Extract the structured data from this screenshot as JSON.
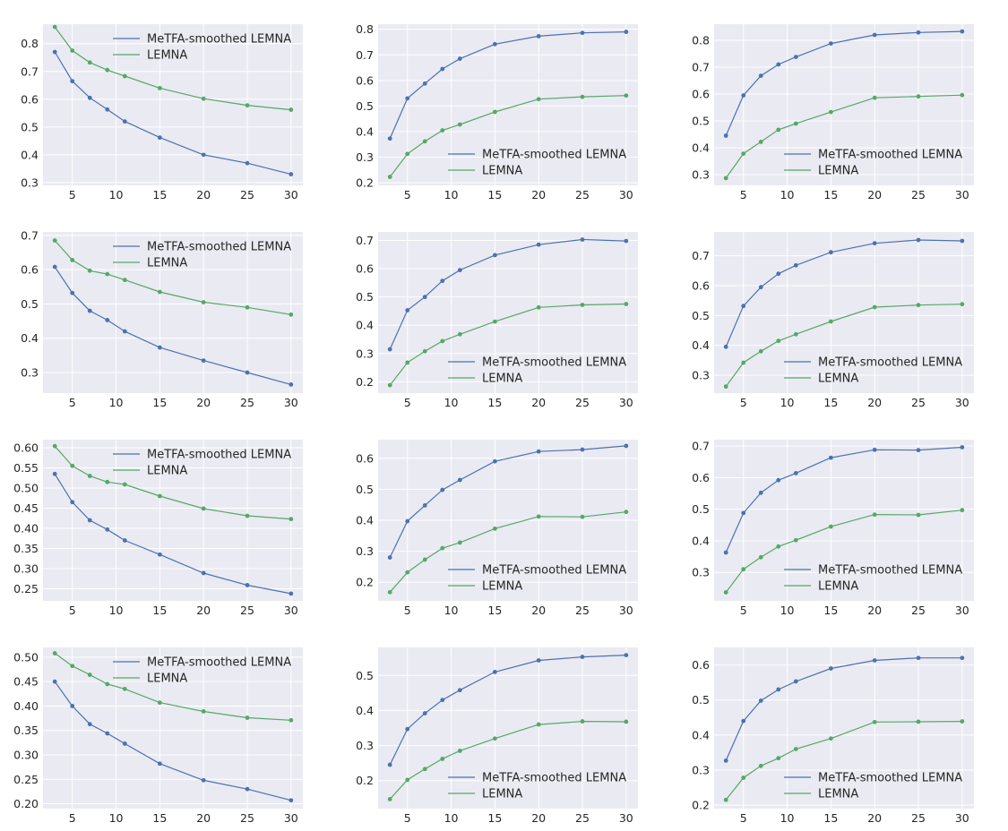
{
  "chart_data": [
    {
      "type": "line",
      "title": "",
      "xlabel": "",
      "ylabel": "",
      "legend": "top-right",
      "x": [
        3,
        5,
        7,
        9,
        11,
        15,
        20,
        25,
        30
      ],
      "xticks": [
        5,
        10,
        15,
        20,
        25,
        30
      ],
      "ylim": [
        0.29,
        0.87
      ],
      "yticks": [
        0.3,
        0.4,
        0.5,
        0.6,
        0.7,
        0.8
      ],
      "ytick_labels": [
        "0.3",
        "0.4",
        "0.5",
        "0.6",
        "0.7",
        "0.8"
      ],
      "series": [
        {
          "name": "MeTFA-smoothed LEMNA",
          "color": "#4c72b0",
          "values": [
            0.77,
            0.665,
            0.605,
            0.563,
            0.52,
            0.462,
            0.4,
            0.37,
            0.33
          ]
        },
        {
          "name": "LEMNA",
          "color": "#55a868",
          "values": [
            0.86,
            0.775,
            0.732,
            0.705,
            0.683,
            0.64,
            0.602,
            0.578,
            0.562
          ]
        }
      ]
    },
    {
      "type": "line",
      "title": "",
      "xlabel": "",
      "ylabel": "",
      "legend": "lower-right",
      "x": [
        3,
        5,
        7,
        9,
        11,
        15,
        20,
        25,
        30
      ],
      "xticks": [
        5,
        10,
        15,
        20,
        25,
        30
      ],
      "ylim": [
        0.19,
        0.82
      ],
      "yticks": [
        0.2,
        0.3,
        0.4,
        0.5,
        0.6,
        0.7,
        0.8
      ],
      "ytick_labels": [
        "0.2",
        "0.3",
        "0.4",
        "0.5",
        "0.6",
        "0.7",
        "0.8"
      ],
      "series": [
        {
          "name": "MeTFA-smoothed LEMNA",
          "color": "#4c72b0",
          "values": [
            0.373,
            0.53,
            0.588,
            0.645,
            0.685,
            0.742,
            0.773,
            0.786,
            0.79
          ]
        },
        {
          "name": "LEMNA",
          "color": "#55a868",
          "values": [
            0.223,
            0.313,
            0.362,
            0.405,
            0.428,
            0.477,
            0.527,
            0.536,
            0.541
          ]
        }
      ]
    },
    {
      "type": "line",
      "title": "",
      "xlabel": "",
      "ylabel": "",
      "legend": "lower-right",
      "x": [
        3,
        5,
        7,
        9,
        11,
        15,
        20,
        25,
        30
      ],
      "xticks": [
        5,
        10,
        15,
        20,
        25,
        30
      ],
      "ylim": [
        0.26,
        0.86
      ],
      "yticks": [
        0.3,
        0.4,
        0.5,
        0.6,
        0.7,
        0.8
      ],
      "ytick_labels": [
        "0.3",
        "0.4",
        "0.5",
        "0.6",
        "0.7",
        "0.8"
      ],
      "series": [
        {
          "name": "MeTFA-smoothed LEMNA",
          "color": "#4c72b0",
          "values": [
            0.445,
            0.595,
            0.668,
            0.71,
            0.738,
            0.788,
            0.82,
            0.829,
            0.833
          ]
        },
        {
          "name": "LEMNA",
          "color": "#55a868",
          "values": [
            0.287,
            0.378,
            0.422,
            0.467,
            0.49,
            0.533,
            0.586,
            0.591,
            0.596
          ]
        }
      ]
    },
    {
      "type": "line",
      "title": "",
      "xlabel": "",
      "ylabel": "",
      "legend": "top-right",
      "x": [
        3,
        5,
        7,
        9,
        11,
        15,
        20,
        25,
        30
      ],
      "xticks": [
        5,
        10,
        15,
        20,
        25,
        30
      ],
      "ylim": [
        0.24,
        0.71
      ],
      "yticks": [
        0.3,
        0.4,
        0.5,
        0.6,
        0.7
      ],
      "ytick_labels": [
        "0.3",
        "0.4",
        "0.5",
        "0.6",
        "0.7"
      ],
      "series": [
        {
          "name": "MeTFA-smoothed LEMNA",
          "color": "#4c72b0",
          "values": [
            0.608,
            0.532,
            0.48,
            0.453,
            0.42,
            0.373,
            0.335,
            0.3,
            0.265
          ]
        },
        {
          "name": "LEMNA",
          "color": "#55a868",
          "values": [
            0.685,
            0.628,
            0.597,
            0.587,
            0.57,
            0.535,
            0.505,
            0.49,
            0.469
          ]
        }
      ]
    },
    {
      "type": "line",
      "title": "",
      "xlabel": "",
      "ylabel": "",
      "legend": "lower-right",
      "x": [
        3,
        5,
        7,
        9,
        11,
        15,
        20,
        25,
        30
      ],
      "xticks": [
        5,
        10,
        15,
        20,
        25,
        30
      ],
      "ylim": [
        0.16,
        0.73
      ],
      "yticks": [
        0.2,
        0.3,
        0.4,
        0.5,
        0.6,
        0.7
      ],
      "ytick_labels": [
        "0.2",
        "0.3",
        "0.4",
        "0.5",
        "0.6",
        "0.7"
      ],
      "series": [
        {
          "name": "MeTFA-smoothed LEMNA",
          "color": "#4c72b0",
          "values": [
            0.315,
            0.453,
            0.5,
            0.557,
            0.595,
            0.648,
            0.685,
            0.703,
            0.698
          ]
        },
        {
          "name": "LEMNA",
          "color": "#55a868",
          "values": [
            0.188,
            0.268,
            0.308,
            0.344,
            0.368,
            0.413,
            0.463,
            0.472,
            0.475
          ]
        }
      ]
    },
    {
      "type": "line",
      "title": "",
      "xlabel": "",
      "ylabel": "",
      "legend": "lower-right",
      "x": [
        3,
        5,
        7,
        9,
        11,
        15,
        20,
        25,
        30
      ],
      "xticks": [
        5,
        10,
        15,
        20,
        25,
        30
      ],
      "ylim": [
        0.24,
        0.78
      ],
      "yticks": [
        0.3,
        0.4,
        0.5,
        0.6,
        0.7
      ],
      "ytick_labels": [
        "0.3",
        "0.4",
        "0.5",
        "0.6",
        "0.7"
      ],
      "series": [
        {
          "name": "MeTFA-smoothed LEMNA",
          "color": "#4c72b0",
          "values": [
            0.395,
            0.532,
            0.595,
            0.64,
            0.668,
            0.712,
            0.742,
            0.753,
            0.75
          ]
        },
        {
          "name": "LEMNA",
          "color": "#55a868",
          "values": [
            0.262,
            0.342,
            0.38,
            0.415,
            0.437,
            0.48,
            0.528,
            0.535,
            0.538
          ]
        }
      ]
    },
    {
      "type": "line",
      "title": "",
      "xlabel": "",
      "ylabel": "",
      "legend": "top-right",
      "x": [
        3,
        5,
        7,
        9,
        11,
        15,
        20,
        25,
        30
      ],
      "xticks": [
        5,
        10,
        15,
        20,
        25,
        30
      ],
      "ylim": [
        0.22,
        0.62
      ],
      "yticks": [
        0.25,
        0.3,
        0.35,
        0.4,
        0.45,
        0.5,
        0.55,
        0.6
      ],
      "ytick_labels": [
        "0.25",
        "0.30",
        "0.35",
        "0.40",
        "0.45",
        "0.50",
        "0.55",
        "0.60"
      ],
      "series": [
        {
          "name": "MeTFA-smoothed LEMNA",
          "color": "#4c72b0",
          "values": [
            0.535,
            0.465,
            0.42,
            0.397,
            0.37,
            0.335,
            0.289,
            0.259,
            0.238
          ]
        },
        {
          "name": "LEMNA",
          "color": "#55a868",
          "values": [
            0.604,
            0.555,
            0.53,
            0.515,
            0.509,
            0.48,
            0.449,
            0.431,
            0.423
          ]
        }
      ]
    },
    {
      "type": "line",
      "title": "",
      "xlabel": "",
      "ylabel": "",
      "legend": "lower-right",
      "x": [
        3,
        5,
        7,
        9,
        11,
        15,
        20,
        25,
        30
      ],
      "xticks": [
        5,
        10,
        15,
        20,
        25,
        30
      ],
      "ylim": [
        0.14,
        0.66
      ],
      "yticks": [
        0.2,
        0.3,
        0.4,
        0.5,
        0.6
      ],
      "ytick_labels": [
        "0.2",
        "0.3",
        "0.4",
        "0.5",
        "0.6"
      ],
      "series": [
        {
          "name": "MeTFA-smoothed LEMNA",
          "color": "#4c72b0",
          "values": [
            0.28,
            0.397,
            0.448,
            0.498,
            0.53,
            0.59,
            0.622,
            0.628,
            0.64
          ]
        },
        {
          "name": "LEMNA",
          "color": "#55a868",
          "values": [
            0.168,
            0.232,
            0.273,
            0.31,
            0.328,
            0.373,
            0.412,
            0.411,
            0.427
          ]
        }
      ]
    },
    {
      "type": "line",
      "title": "",
      "xlabel": "",
      "ylabel": "",
      "legend": "lower-right",
      "x": [
        3,
        5,
        7,
        9,
        11,
        15,
        20,
        25,
        30
      ],
      "xticks": [
        5,
        10,
        15,
        20,
        25,
        30
      ],
      "ylim": [
        0.21,
        0.72
      ],
      "yticks": [
        0.3,
        0.4,
        0.5,
        0.6,
        0.7
      ],
      "ytick_labels": [
        "0.3",
        "0.4",
        "0.5",
        "0.6",
        "0.7"
      ],
      "series": [
        {
          "name": "MeTFA-smoothed LEMNA",
          "color": "#4c72b0",
          "values": [
            0.363,
            0.488,
            0.552,
            0.592,
            0.614,
            0.663,
            0.688,
            0.687,
            0.696
          ]
        },
        {
          "name": "LEMNA",
          "color": "#55a868",
          "values": [
            0.237,
            0.31,
            0.348,
            0.382,
            0.402,
            0.445,
            0.483,
            0.482,
            0.497
          ]
        }
      ]
    },
    {
      "type": "line",
      "title": "",
      "xlabel": "",
      "ylabel": "",
      "legend": "top-right",
      "x": [
        3,
        5,
        7,
        9,
        11,
        15,
        20,
        25,
        30
      ],
      "xticks": [
        5,
        10,
        15,
        20,
        25,
        30
      ],
      "ylim": [
        0.19,
        0.52
      ],
      "yticks": [
        0.2,
        0.25,
        0.3,
        0.35,
        0.4,
        0.45,
        0.5
      ],
      "ytick_labels": [
        "0.20",
        "0.25",
        "0.30",
        "0.35",
        "0.40",
        "0.45",
        "0.50"
      ],
      "series": [
        {
          "name": "MeTFA-smoothed LEMNA",
          "color": "#4c72b0",
          "values": [
            0.45,
            0.4,
            0.363,
            0.344,
            0.323,
            0.282,
            0.248,
            0.23,
            0.207
          ]
        },
        {
          "name": "LEMNA",
          "color": "#55a868",
          "values": [
            0.508,
            0.482,
            0.464,
            0.445,
            0.435,
            0.407,
            0.389,
            0.376,
            0.371
          ]
        }
      ]
    },
    {
      "type": "line",
      "title": "",
      "xlabel": "",
      "ylabel": "",
      "legend": "lower-right",
      "x": [
        3,
        5,
        7,
        9,
        11,
        15,
        20,
        25,
        30
      ],
      "xticks": [
        5,
        10,
        15,
        20,
        25,
        30
      ],
      "ylim": [
        0.12,
        0.58
      ],
      "yticks": [
        0.2,
        0.3,
        0.4,
        0.5
      ],
      "ytick_labels": [
        "0.2",
        "0.3",
        "0.4",
        "0.5"
      ],
      "series": [
        {
          "name": "MeTFA-smoothed LEMNA",
          "color": "#4c72b0",
          "values": [
            0.245,
            0.347,
            0.392,
            0.43,
            0.458,
            0.51,
            0.543,
            0.553,
            0.558
          ]
        },
        {
          "name": "LEMNA",
          "color": "#55a868",
          "values": [
            0.147,
            0.202,
            0.233,
            0.262,
            0.285,
            0.32,
            0.36,
            0.369,
            0.368
          ]
        }
      ]
    },
    {
      "type": "line",
      "title": "",
      "xlabel": "",
      "ylabel": "",
      "legend": "lower-right",
      "x": [
        3,
        5,
        7,
        9,
        11,
        15,
        20,
        25,
        30
      ],
      "xticks": [
        5,
        10,
        15,
        20,
        25,
        30
      ],
      "ylim": [
        0.19,
        0.65
      ],
      "yticks": [
        0.2,
        0.3,
        0.4,
        0.5,
        0.6
      ],
      "ytick_labels": [
        "0.2",
        "0.3",
        "0.4",
        "0.5",
        "0.6"
      ],
      "series": [
        {
          "name": "MeTFA-smoothed LEMNA",
          "color": "#4c72b0",
          "values": [
            0.327,
            0.44,
            0.498,
            0.53,
            0.553,
            0.59,
            0.613,
            0.62,
            0.62
          ]
        },
        {
          "name": "LEMNA",
          "color": "#55a868",
          "values": [
            0.215,
            0.278,
            0.312,
            0.334,
            0.36,
            0.39,
            0.437,
            0.438,
            0.439
          ]
        }
      ]
    }
  ]
}
